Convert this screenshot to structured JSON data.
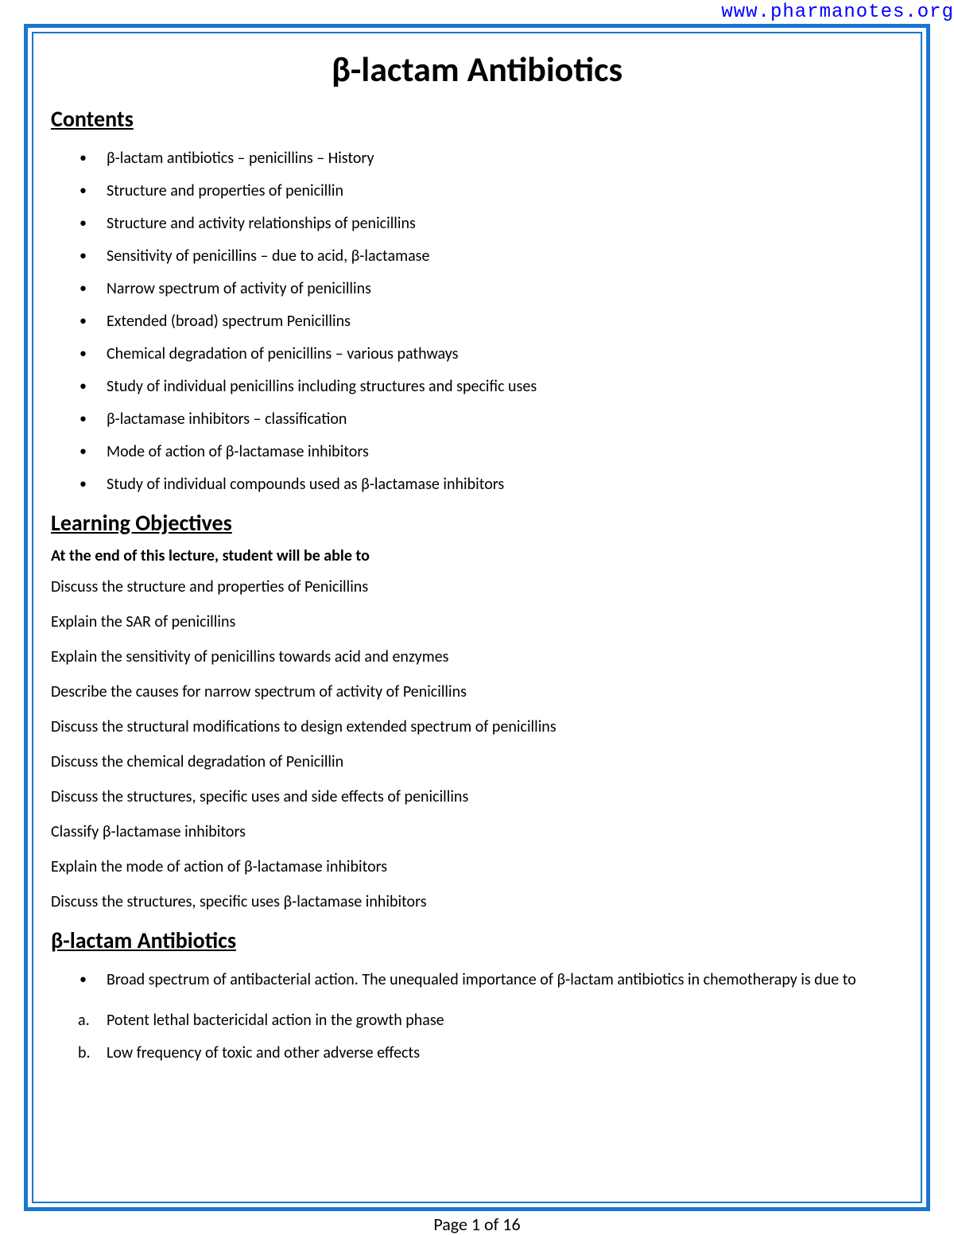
{
  "header": {
    "url": "www.pharmanotes.org"
  },
  "document": {
    "title": "β-lactam Antibiotics"
  },
  "contents": {
    "heading": "Contents",
    "items": [
      "β-lactam antibiotics – penicillins – History",
      "Structure and properties of penicillin",
      "Structure and activity relationships of penicillins",
      "Sensitivity of penicillins – due to acid, β-lactamase",
      "Narrow spectrum of activity of penicillins",
      "Extended (broad) spectrum Penicillins",
      "Chemical degradation of penicillins – various pathways",
      "Study of individual penicillins including structures and specific uses",
      "β-lactamase inhibitors – classification",
      "Mode of action of β-lactamase inhibitors",
      "Study of individual compounds used as β-lactamase inhibitors"
    ]
  },
  "learning_objectives": {
    "heading": "Learning Objectives",
    "intro": "At the end of this lecture, student will be able to",
    "items": [
      "Discuss the structure and properties of Penicillins",
      "Explain the SAR of penicillins",
      "Explain the sensitivity of penicillins towards acid and enzymes",
      "Describe the causes for narrow spectrum of activity of Penicillins",
      "Discuss the structural modifications to design extended spectrum of penicillins",
      "Discuss the chemical degradation of Penicillin",
      "Discuss the structures, specific uses and side effects of penicillins",
      "Classify β-lactamase inhibitors",
      "Explain the mode of action of β-lactamase inhibitors",
      "Discuss the structures, specific uses β-lactamase inhibitors"
    ]
  },
  "beta_lactam": {
    "heading": "β-lactam Antibiotics",
    "bullet": "Broad spectrum of antibacterial action. The unequaled importance  of β-lactam antibiotics in chemotherapy is due to",
    "lettered": [
      {
        "letter": "a.",
        "text": "Potent lethal bactericidal action in the growth phase"
      },
      {
        "letter": "b.",
        "text": "Low frequency of toxic and other adverse effects"
      }
    ]
  },
  "footer": {
    "page_number": "Page 1 of 16"
  },
  "colors": {
    "border": "#1976d2",
    "url": "#0000ff",
    "text": "#000000",
    "background": "#ffffff"
  }
}
